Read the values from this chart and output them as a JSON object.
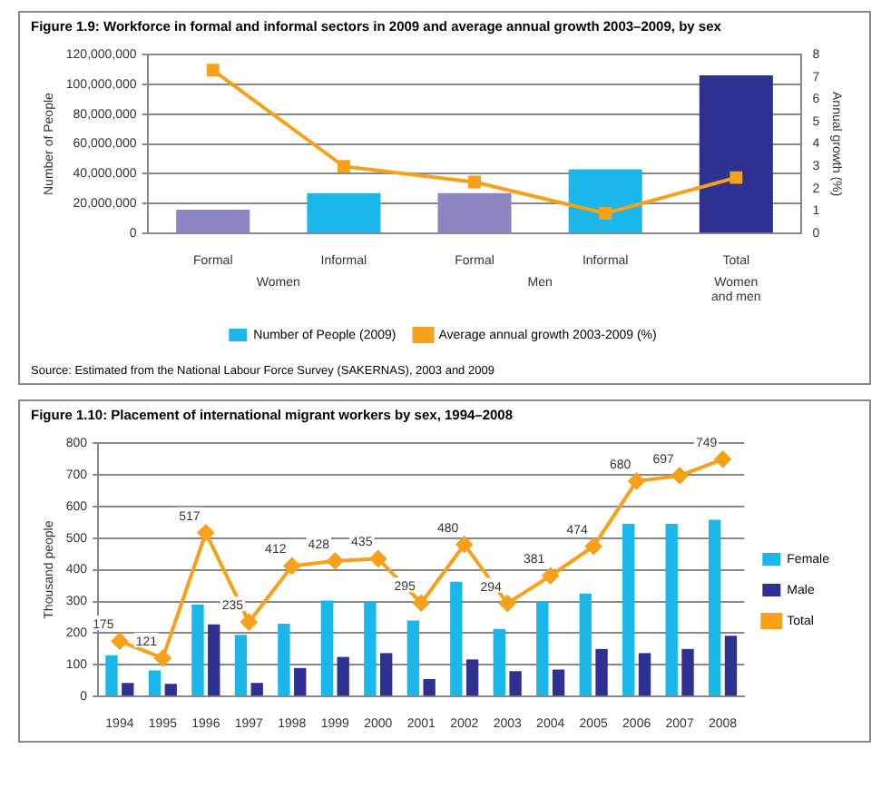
{
  "chart_data": [
    {
      "type": "bar",
      "title": "Figure 1.9: Workforce in formal and informal sectors in 2009 and average annual growth 2003–2009, by sex",
      "ylabel": "Number of People",
      "y2label": "Annual growth (%)",
      "categories": [
        "Formal",
        "Informal",
        "Formal",
        "Informal",
        "Total"
      ],
      "series": [
        {
          "name": "Number of People (2009)",
          "color": "#1ab7ea",
          "colors": [
            "#8b85c1",
            "#1ab7ea",
            "#8b85c1",
            "#1ab7ea",
            "#2e3192"
          ],
          "values": [
            16000000,
            27000000,
            27000000,
            43000000,
            106000000
          ]
        },
        {
          "name": "Average annual growth 2003-2009 (%)",
          "type": "line",
          "axis": "y2",
          "color": "#f7a11a",
          "values": [
            7.3,
            3.0,
            2.3,
            0.9,
            2.5
          ]
        }
      ],
      "ylim": [
        0,
        120000000
      ],
      "yticks": [
        {
          "value": 0,
          "label": "0"
        },
        {
          "value": 20000000,
          "label": "20,000,000"
        },
        {
          "value": 40000000,
          "label": "40,000,000"
        },
        {
          "value": 60000000,
          "label": "60,000,000"
        },
        {
          "value": 80000000,
          "label": "80,000,000"
        },
        {
          "value": 100000000,
          "label": "100,000,000"
        },
        {
          "value": 120000000,
          "label": "120,000,000"
        }
      ],
      "y2lim": [
        0,
        8
      ],
      "y2ticks": [
        0,
        1,
        2,
        3,
        4,
        5,
        6,
        7,
        8
      ],
      "grid": "y",
      "legend": "bottom",
      "marker": "square",
      "annotations": [
        "Women",
        "Men",
        "Women and men",
        "Source: Estimated from the National Labour Force Survey (SAKERNAS), 2003 and 2009"
      ]
    },
    {
      "type": "bar",
      "title": "Figure 1.10: Placement of international migrant workers by sex, 1994–2008",
      "ylabel": "Thousand people",
      "categories": [
        "1994",
        "1995",
        "1996",
        "1997",
        "1998",
        "1999",
        "2000",
        "2001",
        "2002",
        "2003",
        "2004",
        "2005",
        "2006",
        "2007",
        "2008"
      ],
      "series": [
        {
          "name": "Female",
          "color": "#1ab7ea",
          "values": [
            130,
            82,
            290,
            195,
            230,
            303,
            300,
            240,
            362,
            213,
            300,
            325,
            545,
            545,
            558
          ]
        },
        {
          "name": "Male",
          "color": "#2e3192",
          "values": [
            43,
            40,
            228,
            43,
            90,
            125,
            137,
            55,
            117,
            80,
            85,
            150,
            137,
            150,
            192
          ]
        },
        {
          "name": "Total",
          "type": "line",
          "color": "#f7a11a",
          "values": [
            175,
            121,
            517,
            235,
            412,
            428,
            435,
            295,
            480,
            294,
            381,
            474,
            680,
            697,
            749
          ],
          "value_labels": [
            "175",
            "121",
            "517",
            "235",
            "412",
            "428",
            "435",
            "295",
            "480",
            "294",
            "381",
            "474",
            "680",
            "697",
            "749"
          ]
        }
      ],
      "ylim": [
        0,
        800
      ],
      "yticks": [
        0,
        100,
        200,
        300,
        400,
        500,
        600,
        700,
        800
      ],
      "grid": "y",
      "legend": "right",
      "marker": "diamond"
    }
  ]
}
